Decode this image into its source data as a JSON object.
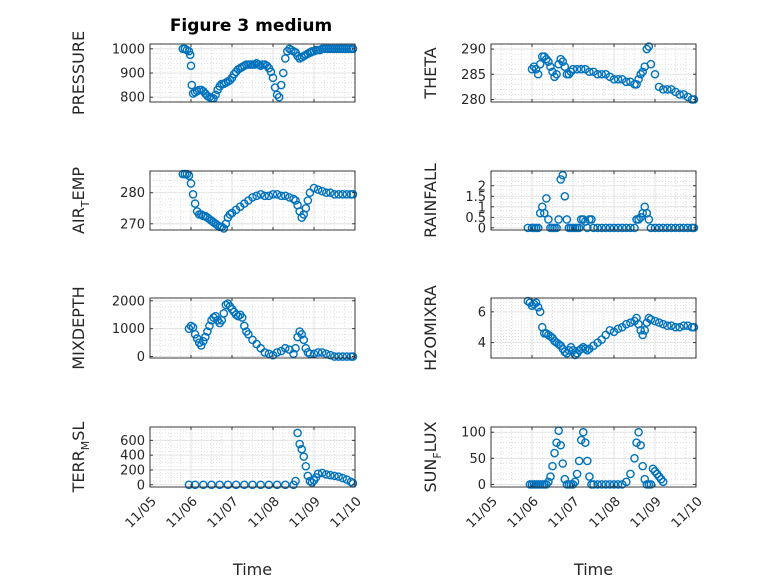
{
  "figure": {
    "title": "Figure 3 medium"
  },
  "style": {
    "marker_color": "#0072bd",
    "grid_color": "#cccccc",
    "axis_color": "#262626"
  },
  "chart_data": [
    {
      "type": "scatter",
      "ylabel": "PRESSURE",
      "xlabel": "",
      "xlim": [
        5,
        10
      ],
      "ylim": [
        780,
        1020
      ],
      "yticks": [
        800,
        900,
        1000
      ],
      "ytick_labels": [
        "800",
        "900",
        "1000"
      ],
      "grid": true,
      "x": [
        5.8,
        5.85,
        5.9,
        5.95,
        5.98,
        6.0,
        6.02,
        6.05,
        6.1,
        6.15,
        6.2,
        6.25,
        6.3,
        6.35,
        6.4,
        6.45,
        6.5,
        6.55,
        6.6,
        6.65,
        6.7,
        6.75,
        6.8,
        6.85,
        6.9,
        6.95,
        7.0,
        7.05,
        7.1,
        7.15,
        7.2,
        7.25,
        7.3,
        7.35,
        7.4,
        7.45,
        7.5,
        7.55,
        7.6,
        7.65,
        7.7,
        7.75,
        7.8,
        7.85,
        7.9,
        7.95,
        8.0,
        8.05,
        8.1,
        8.15,
        8.2,
        8.25,
        8.3,
        8.35,
        8.4,
        8.45,
        8.5,
        8.55,
        8.6,
        8.65,
        8.7,
        8.75,
        8.8,
        8.85,
        8.9,
        8.92,
        8.95,
        9.0,
        9.05,
        9.1,
        9.15,
        9.2,
        9.25,
        9.3,
        9.35,
        9.4,
        9.45,
        9.5,
        9.55,
        9.6,
        9.65,
        9.7,
        9.75,
        9.8,
        9.85,
        9.9,
        9.95
      ],
      "y": [
        1000,
        1000,
        995,
        990,
        975,
        930,
        850,
        815,
        820,
        825,
        830,
        830,
        825,
        815,
        805,
        800,
        795,
        795,
        810,
        830,
        845,
        855,
        855,
        860,
        865,
        870,
        880,
        895,
        905,
        915,
        920,
        925,
        930,
        935,
        935,
        935,
        935,
        935,
        940,
        935,
        930,
        935,
        935,
        930,
        920,
        905,
        880,
        840,
        810,
        800,
        850,
        900,
        960,
        990,
        1000,
        995,
        990,
        985,
        970,
        960,
        965,
        970,
        975,
        980,
        985,
        985,
        990,
        990,
        995,
        995,
        995,
        1000,
        1000,
        1000,
        1000,
        1000,
        1000,
        1000,
        1000,
        1000,
        1000,
        1000,
        1000,
        1000,
        1000,
        1000,
        1000
      ]
    },
    {
      "type": "scatter",
      "ylabel": "THETA",
      "xlabel": "",
      "xlim": [
        5,
        10
      ],
      "ylim": [
        279.5,
        291
      ],
      "yticks": [
        280,
        285,
        290
      ],
      "ytick_labels": [
        "280",
        "285",
        "290"
      ],
      "grid": true,
      "x": [
        6.0,
        6.05,
        6.1,
        6.15,
        6.2,
        6.25,
        6.3,
        6.35,
        6.4,
        6.45,
        6.5,
        6.55,
        6.6,
        6.65,
        6.7,
        6.75,
        6.8,
        6.85,
        6.9,
        6.95,
        7.0,
        7.1,
        7.2,
        7.3,
        7.4,
        7.5,
        7.6,
        7.7,
        7.8,
        7.9,
        8.0,
        8.1,
        8.2,
        8.3,
        8.4,
        8.5,
        8.55,
        8.6,
        8.65,
        8.7,
        8.75,
        8.8,
        8.85,
        8.9,
        9.0,
        9.1,
        9.2,
        9.3,
        9.4,
        9.5,
        9.6,
        9.7,
        9.8,
        9.9,
        9.95
      ],
      "y": [
        286,
        286.5,
        286,
        285,
        287,
        288.5,
        288.5,
        288,
        287.5,
        286.5,
        285.5,
        284.5,
        285,
        287,
        288,
        287.5,
        286.5,
        285,
        285,
        285.5,
        286,
        286,
        286,
        286,
        285.5,
        285.5,
        285,
        285,
        285,
        284.5,
        284,
        284,
        284,
        283.5,
        283.5,
        283,
        283,
        284,
        285,
        285.5,
        286.5,
        290,
        290.5,
        287,
        285,
        282.5,
        282,
        282,
        282,
        281.5,
        281,
        281,
        280.5,
        280,
        280
      ]
    },
    {
      "type": "scatter",
      "ylabel": "AIR_TEMP",
      "xlabel": "",
      "xlim": [
        5,
        10
      ],
      "ylim": [
        268,
        287
      ],
      "yticks": [
        270,
        280
      ],
      "ytick_labels": [
        "270",
        "280"
      ],
      "grid": true,
      "x": [
        5.8,
        5.85,
        5.9,
        5.95,
        6.0,
        6.05,
        6.1,
        6.15,
        6.2,
        6.25,
        6.3,
        6.35,
        6.4,
        6.45,
        6.5,
        6.55,
        6.6,
        6.65,
        6.7,
        6.75,
        6.8,
        6.85,
        6.9,
        6.95,
        7.0,
        7.1,
        7.2,
        7.3,
        7.4,
        7.5,
        7.6,
        7.7,
        7.8,
        7.9,
        8.0,
        8.1,
        8.2,
        8.3,
        8.4,
        8.5,
        8.55,
        8.6,
        8.65,
        8.7,
        8.75,
        8.8,
        8.85,
        8.9,
        9.0,
        9.1,
        9.2,
        9.3,
        9.4,
        9.5,
        9.6,
        9.7,
        9.8,
        9.9,
        9.95
      ],
      "y": [
        286,
        286,
        286,
        285.5,
        283,
        279.5,
        276.5,
        274,
        273,
        273,
        272.5,
        272.5,
        272,
        271.5,
        271,
        270.5,
        270,
        269.5,
        269,
        269,
        268.5,
        270,
        272,
        273,
        273.5,
        274.5,
        275.5,
        276.5,
        277.5,
        278.5,
        279,
        279.5,
        279,
        279,
        279.5,
        279.5,
        279,
        279,
        278.5,
        278,
        277.5,
        276,
        274,
        272,
        273,
        275,
        277.5,
        280,
        281.5,
        281,
        280.5,
        280,
        280,
        279.5,
        279.5,
        279.5,
        279.5,
        279.5,
        279.5
      ]
    },
    {
      "type": "scatter",
      "ylabel": "RAINFALL",
      "xlabel": "",
      "xlim": [
        5,
        10
      ],
      "ylim": [
        -0.1,
        2.7
      ],
      "yticks": [
        0,
        0.5,
        1,
        1.5,
        2
      ],
      "ytick_labels": [
        "0",
        "0.5",
        "1",
        "1.5",
        "2"
      ],
      "grid": true,
      "x": [
        5.9,
        6.0,
        6.05,
        6.1,
        6.15,
        6.2,
        6.25,
        6.3,
        6.35,
        6.4,
        6.45,
        6.5,
        6.55,
        6.6,
        6.65,
        6.7,
        6.75,
        6.8,
        6.85,
        6.9,
        6.95,
        7.0,
        7.05,
        7.1,
        7.15,
        7.2,
        7.25,
        7.3,
        7.35,
        7.4,
        7.45,
        7.5,
        7.6,
        7.7,
        7.8,
        7.9,
        8.0,
        8.1,
        8.2,
        8.3,
        8.4,
        8.5,
        8.55,
        8.6,
        8.65,
        8.7,
        8.75,
        8.8,
        8.85,
        8.9,
        9.0,
        9.1,
        9.2,
        9.3,
        9.4,
        9.5,
        9.6,
        9.7,
        9.8,
        9.9,
        9.95
      ],
      "y": [
        0,
        0,
        0,
        0,
        0,
        0.7,
        1.0,
        0.7,
        1.4,
        0.4,
        0,
        0,
        0,
        0,
        0.4,
        2.3,
        2.5,
        1.5,
        0.4,
        0,
        0,
        0,
        0,
        0,
        0,
        0.4,
        0.4,
        0.3,
        0,
        0.4,
        0.4,
        0,
        0,
        0,
        0,
        0,
        0,
        0,
        0,
        0,
        0,
        0,
        0.4,
        0.4,
        0.5,
        0.7,
        1.0,
        0.7,
        0.4,
        0,
        0,
        0,
        0,
        0,
        0,
        0,
        0,
        0,
        0,
        0,
        0
      ]
    },
    {
      "type": "scatter",
      "ylabel": "MIXDEPTH",
      "xlabel": "",
      "xlim": [
        5,
        10
      ],
      "ylim": [
        -50,
        2100
      ],
      "yticks": [
        0,
        1000,
        2000
      ],
      "ytick_labels": [
        "0",
        "1000",
        "2000"
      ],
      "grid": true,
      "x": [
        5.95,
        6.0,
        6.05,
        6.1,
        6.15,
        6.2,
        6.25,
        6.3,
        6.35,
        6.4,
        6.45,
        6.5,
        6.55,
        6.6,
        6.65,
        6.7,
        6.75,
        6.8,
        6.85,
        6.9,
        6.95,
        7.0,
        7.05,
        7.1,
        7.15,
        7.2,
        7.25,
        7.3,
        7.35,
        7.4,
        7.5,
        7.6,
        7.7,
        7.8,
        7.9,
        8.0,
        8.1,
        8.2,
        8.3,
        8.4,
        8.5,
        8.55,
        8.6,
        8.65,
        8.7,
        8.75,
        8.8,
        8.85,
        8.9,
        9.0,
        9.1,
        9.2,
        9.3,
        9.4,
        9.5,
        9.6,
        9.7,
        9.8,
        9.9,
        9.95
      ],
      "y": [
        1000,
        1100,
        1050,
        800,
        650,
        500,
        400,
        550,
        700,
        900,
        1100,
        1300,
        1400,
        1450,
        1300,
        1200,
        1300,
        1550,
        1850,
        1900,
        1800,
        1700,
        1600,
        1500,
        1450,
        1500,
        1400,
        1100,
        900,
        800,
        600,
        450,
        300,
        150,
        100,
        50,
        150,
        200,
        300,
        250,
        100,
        300,
        700,
        900,
        800,
        600,
        300,
        150,
        100,
        100,
        150,
        150,
        100,
        50,
        0,
        0,
        0,
        0,
        0,
        0
      ]
    },
    {
      "type": "scatter",
      "ylabel": "H2OMIXRA",
      "xlabel": "",
      "xlim": [
        5,
        10
      ],
      "ylim": [
        3,
        6.9
      ],
      "yticks": [
        4,
        6
      ],
      "ytick_labels": [
        "4",
        "6"
      ],
      "grid": true,
      "x": [
        5.9,
        5.95,
        6.0,
        6.05,
        6.1,
        6.15,
        6.2,
        6.25,
        6.3,
        6.35,
        6.4,
        6.45,
        6.5,
        6.55,
        6.6,
        6.65,
        6.7,
        6.75,
        6.8,
        6.85,
        6.9,
        6.95,
        7.0,
        7.05,
        7.1,
        7.15,
        7.2,
        7.25,
        7.3,
        7.35,
        7.4,
        7.5,
        7.6,
        7.7,
        7.8,
        7.9,
        8.0,
        8.1,
        8.2,
        8.3,
        8.4,
        8.5,
        8.55,
        8.6,
        8.65,
        8.7,
        8.75,
        8.8,
        8.85,
        8.9,
        9.0,
        9.1,
        9.2,
        9.3,
        9.4,
        9.5,
        9.6,
        9.7,
        9.8,
        9.9,
        9.95
      ],
      "y": [
        6.7,
        6.6,
        6.4,
        6.5,
        6.6,
        6.3,
        6.0,
        5.0,
        4.6,
        4.6,
        4.5,
        4.4,
        4.3,
        4.1,
        4.0,
        3.9,
        3.8,
        3.6,
        3.4,
        3.3,
        3.5,
        3.7,
        3.5,
        3.2,
        3.3,
        3.5,
        3.6,
        3.7,
        3.6,
        3.5,
        3.6,
        3.8,
        4.0,
        4.2,
        4.5,
        4.8,
        4.7,
        4.9,
        5.0,
        5.2,
        5.3,
        5.4,
        5.6,
        5.2,
        4.8,
        4.5,
        4.8,
        5.3,
        5.6,
        5.5,
        5.4,
        5.3,
        5.2,
        5.1,
        5.1,
        5.0,
        5.0,
        5.1,
        5.1,
        5.0,
        5.0
      ]
    },
    {
      "type": "scatter",
      "ylabel": "TERR_MSL",
      "xlabel": "Time",
      "xlim": [
        5,
        10
      ],
      "ylim": [
        -30,
        780
      ],
      "yticks": [
        0,
        200,
        400,
        600
      ],
      "ytick_labels": [
        "0",
        "200",
        "400",
        "600"
      ],
      "xticks": [
        5,
        6,
        7,
        8,
        9,
        10
      ],
      "xtick_labels": [
        "11/05",
        "11/06",
        "11/07",
        "11/08",
        "11/09",
        "11/10"
      ],
      "grid": true,
      "x": [
        5.95,
        6.1,
        6.3,
        6.5,
        6.7,
        6.9,
        7.1,
        7.3,
        7.5,
        7.7,
        7.9,
        8.1,
        8.3,
        8.5,
        8.55,
        8.6,
        8.65,
        8.7,
        8.75,
        8.8,
        8.85,
        8.9,
        8.95,
        9.0,
        9.05,
        9.1,
        9.2,
        9.3,
        9.4,
        9.5,
        9.6,
        9.7,
        9.8,
        9.9,
        9.95
      ],
      "y": [
        0,
        0,
        0,
        0,
        0,
        0,
        0,
        0,
        0,
        0,
        0,
        0,
        0,
        0,
        50,
        700,
        550,
        480,
        380,
        250,
        120,
        50,
        30,
        60,
        100,
        150,
        160,
        140,
        130,
        120,
        110,
        90,
        70,
        40,
        20
      ]
    },
    {
      "type": "scatter",
      "ylabel": "SUN_FLUX",
      "xlabel": "Time",
      "xlim": [
        5,
        10
      ],
      "ylim": [
        -5,
        110
      ],
      "yticks": [
        0,
        50,
        100
      ],
      "ytick_labels": [
        "0",
        "50",
        "100"
      ],
      "xticks": [
        5,
        6,
        7,
        8,
        9,
        10
      ],
      "xtick_labels": [
        "11/05",
        "11/06",
        "11/07",
        "11/08",
        "11/09",
        "11/10"
      ],
      "grid": true,
      "x": [
        5.95,
        6.0,
        6.05,
        6.1,
        6.15,
        6.2,
        6.25,
        6.3,
        6.35,
        6.4,
        6.45,
        6.5,
        6.55,
        6.6,
        6.65,
        6.7,
        6.75,
        6.8,
        6.85,
        6.9,
        6.95,
        7.0,
        7.05,
        7.1,
        7.15,
        7.2,
        7.25,
        7.3,
        7.35,
        7.4,
        7.45,
        7.5,
        7.6,
        7.7,
        7.8,
        7.9,
        8.0,
        8.1,
        8.2,
        8.3,
        8.4,
        8.5,
        8.55,
        8.6,
        8.65,
        8.7,
        8.75,
        8.8,
        8.85,
        8.9,
        8.95,
        9.0,
        9.05,
        9.1,
        9.15,
        9.2
      ],
      "y": [
        0,
        0,
        0,
        0,
        0,
        0,
        0,
        0,
        0,
        5,
        15,
        35,
        60,
        80,
        103,
        75,
        40,
        10,
        0,
        0,
        0,
        0,
        5,
        20,
        45,
        85,
        100,
        80,
        45,
        15,
        0,
        0,
        0,
        0,
        0,
        0,
        0,
        0,
        0,
        5,
        20,
        50,
        80,
        100,
        75,
        35,
        10,
        0,
        0,
        0,
        30,
        25,
        20,
        15,
        10,
        5
      ]
    }
  ]
}
